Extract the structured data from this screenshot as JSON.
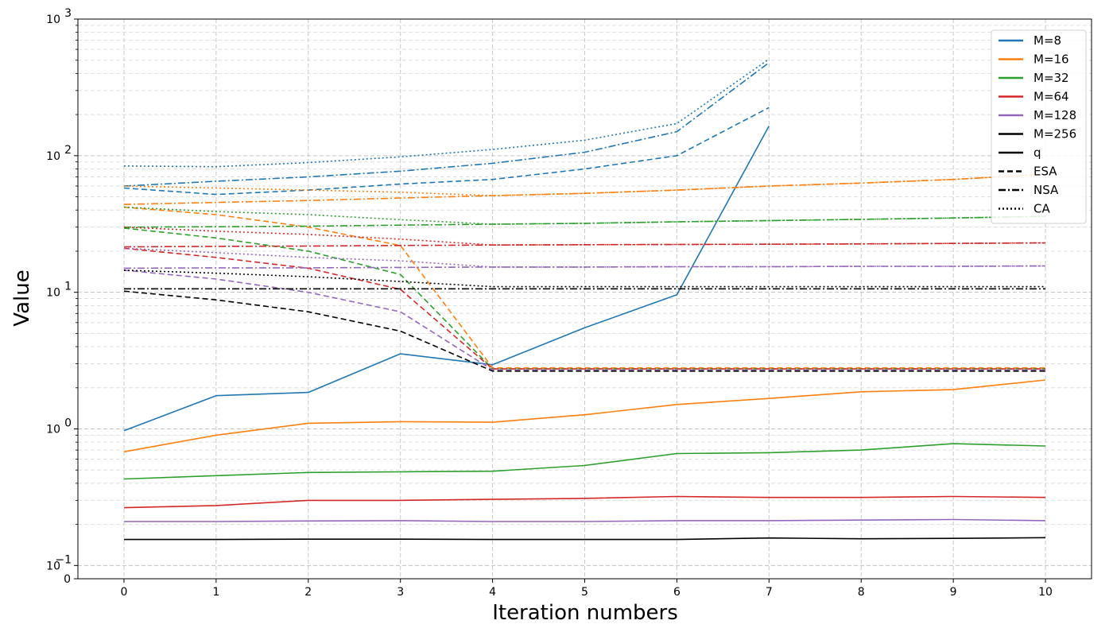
{
  "chart_data": {
    "type": "line",
    "xlabel": "Iteration numbers",
    "ylabel": "Value",
    "x_ticks": [
      "0",
      "1",
      "2",
      "3",
      "4",
      "5",
      "6",
      "7",
      "8",
      "9",
      "10"
    ],
    "y_scale": "log",
    "ylim": [
      0.08,
      1000
    ],
    "y_ticks": [
      {
        "value": 0.1,
        "base": "10",
        "exp": "−1"
      },
      {
        "value": 1,
        "base": "10",
        "exp": "0"
      },
      {
        "value": 10,
        "base": "10",
        "exp": "1"
      },
      {
        "value": 100,
        "base": "10",
        "exp": "2"
      },
      {
        "value": 1000,
        "base": "10",
        "exp": "3"
      }
    ],
    "y_extra_tick": {
      "value": 0.08,
      "label": "0"
    },
    "grid": true,
    "legend_position": "top-right",
    "legend": [
      {
        "label": "M=8",
        "color": "#1f77b4",
        "style": "solid"
      },
      {
        "label": "M=16",
        "color": "#ff7f0e",
        "style": "solid"
      },
      {
        "label": "M=32",
        "color": "#2ca02c",
        "style": "solid"
      },
      {
        "label": "M=64",
        "color": "#d62728",
        "style": "solid"
      },
      {
        "label": "M=128",
        "color": "#9467bd",
        "style": "solid"
      },
      {
        "label": "M=256",
        "color": "#000000",
        "style": "solid"
      },
      {
        "label": "q",
        "color": "#000000",
        "style": "solid"
      },
      {
        "label": "ESA",
        "color": "#000000",
        "style": "dashed"
      },
      {
        "label": "NSA",
        "color": "#000000",
        "style": "dashdot"
      },
      {
        "label": "CA",
        "color": "#000000",
        "style": "dotted"
      }
    ],
    "series": [
      {
        "name": "M=8 q",
        "color": "#1f77b4",
        "style": "solid",
        "x": [
          0,
          1,
          2,
          3,
          4,
          5,
          6,
          7
        ],
        "y": [
          0.97,
          1.75,
          1.85,
          3.55,
          2.95,
          5.5,
          9.6,
          165
        ]
      },
      {
        "name": "M=8 ESA",
        "color": "#1f77b4",
        "style": "dashed",
        "x": [
          0,
          1,
          2,
          3,
          4,
          5,
          6,
          7
        ],
        "y": [
          58,
          52,
          56,
          62,
          67,
          80,
          100,
          225
        ]
      },
      {
        "name": "M=8 NSA",
        "color": "#1f77b4",
        "style": "dashdot",
        "x": [
          0,
          1,
          2,
          3,
          4,
          5,
          6,
          7
        ],
        "y": [
          60,
          65,
          70,
          77,
          88,
          106,
          150,
          480
        ]
      },
      {
        "name": "M=8 CA",
        "color": "#1f77b4",
        "style": "dotted",
        "x": [
          0,
          1,
          2,
          3,
          4,
          5,
          6,
          7
        ],
        "y": [
          84,
          83,
          89,
          98,
          111,
          130,
          172,
          510
        ]
      },
      {
        "name": "M=16 q",
        "color": "#ff7f0e",
        "style": "solid",
        "x": [
          0,
          1,
          2,
          3,
          4,
          5,
          6,
          7,
          8,
          9,
          10
        ],
        "y": [
          0.68,
          0.9,
          1.1,
          1.13,
          1.12,
          1.27,
          1.51,
          1.67,
          1.87,
          1.94,
          2.28
        ]
      },
      {
        "name": "M=16 ESA",
        "color": "#ff7f0e",
        "style": "dashed",
        "x": [
          0,
          1,
          2,
          3,
          4,
          5,
          6,
          7,
          8,
          9,
          10
        ],
        "y": [
          42,
          37,
          30,
          22,
          2.8,
          2.8,
          2.8,
          2.8,
          2.8,
          2.8,
          2.8
        ]
      },
      {
        "name": "M=16 NSA",
        "color": "#ff7f0e",
        "style": "dashdot",
        "x": [
          0,
          1,
          2,
          3,
          4,
          5,
          6,
          7,
          8,
          9,
          10
        ],
        "y": [
          44,
          45.5,
          47,
          49,
          51,
          53,
          56,
          60,
          63,
          67,
          73
        ]
      },
      {
        "name": "M=16 CA",
        "color": "#ff7f0e",
        "style": "dotted",
        "x": [
          0,
          1,
          2,
          3,
          4,
          5,
          6,
          7,
          8,
          9,
          10
        ],
        "y": [
          60,
          58,
          56,
          54,
          51,
          53,
          56,
          60,
          63,
          67,
          73
        ]
      },
      {
        "name": "M=32 q",
        "color": "#2ca02c",
        "style": "solid",
        "x": [
          0,
          1,
          2,
          3,
          4,
          5,
          6,
          7,
          8,
          9,
          10
        ],
        "y": [
          0.43,
          0.455,
          0.48,
          0.485,
          0.49,
          0.54,
          0.66,
          0.67,
          0.7,
          0.78,
          0.75
        ]
      },
      {
        "name": "M=32 ESA",
        "color": "#2ca02c",
        "style": "dashed",
        "x": [
          0,
          1,
          2,
          3,
          4,
          5,
          6,
          7,
          8,
          9,
          10
        ],
        "y": [
          29.5,
          25,
          20,
          13.5,
          2.75,
          2.75,
          2.75,
          2.75,
          2.75,
          2.75,
          2.75
        ]
      },
      {
        "name": "M=32 NSA",
        "color": "#2ca02c",
        "style": "dashdot",
        "x": [
          0,
          1,
          2,
          3,
          4,
          5,
          6,
          7,
          8,
          9,
          10
        ],
        "y": [
          30,
          30.2,
          30.5,
          31,
          31.5,
          32,
          32.8,
          33.5,
          34.2,
          35,
          36
        ]
      },
      {
        "name": "M=32 CA",
        "color": "#2ca02c",
        "style": "dotted",
        "x": [
          0,
          1,
          2,
          3,
          4,
          5,
          6,
          7,
          8,
          9,
          10
        ],
        "y": [
          42,
          39,
          37,
          34,
          31.5,
          32,
          32.8,
          33.5,
          34.2,
          35,
          36
        ]
      },
      {
        "name": "M=64 q",
        "color": "#d62728",
        "style": "solid",
        "x": [
          0,
          1,
          2,
          3,
          4,
          5,
          6,
          7,
          8,
          9,
          10
        ],
        "y": [
          0.265,
          0.275,
          0.3,
          0.3,
          0.305,
          0.31,
          0.32,
          0.315,
          0.315,
          0.32,
          0.315
        ]
      },
      {
        "name": "M=64 ESA",
        "color": "#d62728",
        "style": "dashed",
        "x": [
          0,
          1,
          2,
          3,
          4,
          5,
          6,
          7,
          8,
          9,
          10
        ],
        "y": [
          21,
          18,
          15,
          10.5,
          2.75,
          2.75,
          2.75,
          2.75,
          2.75,
          2.75,
          2.75
        ]
      },
      {
        "name": "M=64 NSA",
        "color": "#d62728",
        "style": "dashdot",
        "x": [
          0,
          1,
          2,
          3,
          4,
          5,
          6,
          7,
          8,
          9,
          10
        ],
        "y": [
          21.5,
          21.7,
          21.8,
          22,
          22.2,
          22.3,
          22.4,
          22.5,
          22.6,
          22.8,
          23
        ]
      },
      {
        "name": "M=64 CA",
        "color": "#d62728",
        "style": "dotted",
        "x": [
          0,
          1,
          2,
          3,
          4,
          5,
          6,
          7,
          8,
          9,
          10
        ],
        "y": [
          30,
          28,
          26.5,
          24.5,
          22.2,
          22.3,
          22.4,
          22.5,
          22.6,
          22.8,
          23
        ]
      },
      {
        "name": "M=128 q",
        "color": "#9467bd",
        "style": "solid",
        "x": [
          0,
          1,
          2,
          3,
          4,
          5,
          6,
          7,
          8,
          9,
          10
        ],
        "y": [
          0.21,
          0.21,
          0.212,
          0.213,
          0.21,
          0.21,
          0.213,
          0.213,
          0.215,
          0.217,
          0.213
        ]
      },
      {
        "name": "M=128 ESA",
        "color": "#9467bd",
        "style": "dashed",
        "x": [
          0,
          1,
          2,
          3,
          4,
          5,
          6,
          7,
          8,
          9,
          10
        ],
        "y": [
          14.5,
          12.5,
          10,
          7.2,
          2.7,
          2.7,
          2.7,
          2.7,
          2.7,
          2.7,
          2.7
        ]
      },
      {
        "name": "M=128 NSA",
        "color": "#9467bd",
        "style": "dashdot",
        "x": [
          0,
          1,
          2,
          3,
          4,
          5,
          6,
          7,
          8,
          9,
          10
        ],
        "y": [
          15,
          15.1,
          15.1,
          15.2,
          15.3,
          15.3,
          15.4,
          15.4,
          15.5,
          15.5,
          15.6
        ]
      },
      {
        "name": "M=128 CA",
        "color": "#9467bd",
        "style": "dotted",
        "x": [
          0,
          1,
          2,
          3,
          4,
          5,
          6,
          7,
          8,
          9,
          10
        ],
        "y": [
          21,
          19.5,
          18,
          17,
          15.3,
          15.3,
          15.4,
          15.4,
          15.5,
          15.5,
          15.6
        ]
      },
      {
        "name": "M=256 q",
        "color": "#000000",
        "style": "solid",
        "x": [
          0,
          1,
          2,
          3,
          4,
          5,
          6,
          7,
          8,
          9,
          10
        ],
        "y": [
          0.155,
          0.155,
          0.156,
          0.156,
          0.155,
          0.155,
          0.155,
          0.159,
          0.157,
          0.158,
          0.16
        ]
      },
      {
        "name": "M=256 ESA",
        "color": "#000000",
        "style": "dashed",
        "x": [
          0,
          1,
          2,
          3,
          4,
          5,
          6,
          7,
          8,
          9,
          10
        ],
        "y": [
          10.2,
          8.8,
          7.2,
          5.2,
          2.65,
          2.65,
          2.65,
          2.65,
          2.65,
          2.65,
          2.65
        ]
      },
      {
        "name": "M=256 NSA",
        "color": "#000000",
        "style": "dashdot",
        "x": [
          0,
          1,
          2,
          3,
          4,
          5,
          6,
          7,
          8,
          9,
          10
        ],
        "y": [
          10.6,
          10.6,
          10.6,
          10.6,
          10.6,
          10.6,
          10.6,
          10.6,
          10.6,
          10.6,
          10.6
        ]
      },
      {
        "name": "M=256 CA",
        "color": "#000000",
        "style": "dotted",
        "x": [
          0,
          1,
          2,
          3,
          4,
          5,
          6,
          7,
          8,
          9,
          10
        ],
        "y": [
          14.5,
          13.8,
          13,
          12,
          11,
          11,
          11,
          11,
          11,
          11,
          11
        ]
      }
    ]
  }
}
